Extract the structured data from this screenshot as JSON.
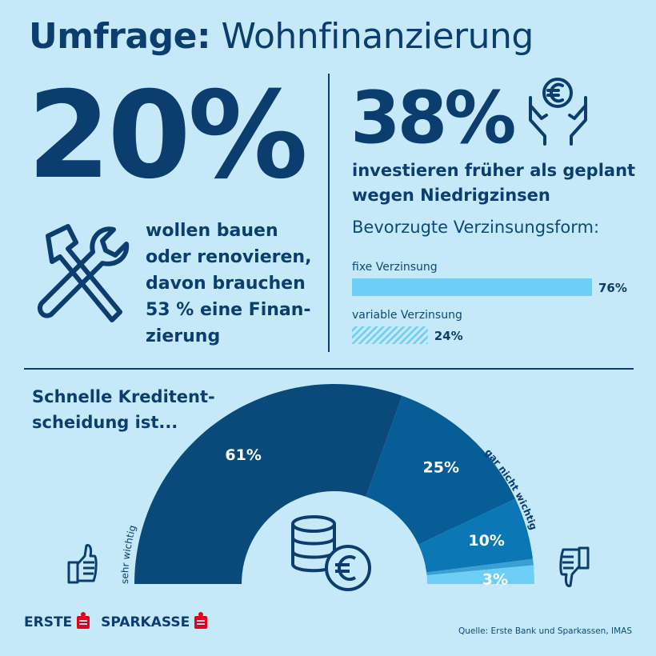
{
  "title": {
    "bold": "Umfrage:",
    "regular": "Wohnfinanzierung"
  },
  "left": {
    "stat": "20%",
    "lines": [
      "wollen bauen",
      "oder renovieren,",
      "davon brauchen",
      "53 % eine Finan-",
      "zierung"
    ],
    "icon": "tools-icon"
  },
  "right": {
    "stat": "38%",
    "lines": [
      "investieren früher als geplant",
      "wegen Niedrigzinsen"
    ],
    "icon": "hands-euro-icon",
    "preference_title": "Bevorzugte Verzinsungsform:"
  },
  "colors": {
    "background": "#c6e9fa",
    "navy": "#0b3e6f",
    "bar_fixed": "#6dcff6",
    "donut": [
      "#0a4a7b",
      "#075d96",
      "#0b78b5",
      "#3a9fd3",
      "#6dcff6"
    ],
    "logo_red": "#e2001a"
  },
  "chart_data": [
    {
      "type": "bar",
      "orientation": "horizontal",
      "categories": [
        "fixe Verzinsung",
        "variable Verzinsung"
      ],
      "values": [
        76,
        24
      ],
      "value_labels": [
        "76%",
        "24%"
      ],
      "unit": "%",
      "styles": [
        "solid",
        "hatched"
      ]
    },
    {
      "type": "pie",
      "variant": "half-donut",
      "title_lines": [
        "Schnelle Kreditent-",
        "scheidung ist..."
      ],
      "values": [
        61,
        25,
        10,
        1,
        3
      ],
      "value_labels": [
        "61%",
        "25%",
        "10%",
        "",
        "3%"
      ],
      "scale_left": "sehr wichtig",
      "scale_right": "gar nicht wichtig",
      "icons": [
        "thumbs-up-icon",
        "thumbs-down-icon",
        "coins-euro-icon"
      ]
    }
  ],
  "footer": {
    "logo": "ERSTE SPARKASSE",
    "logo_parts": [
      "ERSTE",
      "SPARKASSE"
    ],
    "source": "Quelle: Erste Bank und Sparkassen, IMAS"
  }
}
